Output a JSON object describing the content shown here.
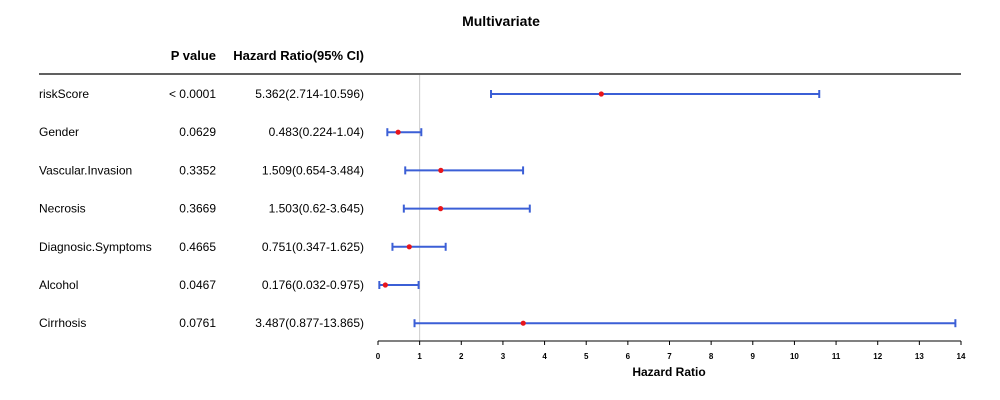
{
  "chart_data": {
    "type": "forest",
    "title": "Multivariate",
    "columns": {
      "pvalue_header": "P value",
      "hr_header": "Hazard Ratio(95% CI)"
    },
    "xlabel": "Hazard Ratio",
    "xlim": [
      0,
      14
    ],
    "reference_line": 1,
    "xticks": [
      "0",
      "1",
      "2",
      "3",
      "4",
      "5",
      "6",
      "7",
      "8",
      "9",
      "10",
      "11",
      "12",
      "13",
      "14"
    ],
    "rows": [
      {
        "variable": "riskScore",
        "pvalue": "< 0.0001",
        "hr_text": "5.362(2.714-10.596)",
        "hr": 5.362,
        "lower": 2.714,
        "upper": 10.596
      },
      {
        "variable": "Gender",
        "pvalue": "0.0629",
        "hr_text": "0.483(0.224-1.04)",
        "hr": 0.483,
        "lower": 0.224,
        "upper": 1.04
      },
      {
        "variable": "Vascular.Invasion",
        "pvalue": "0.3352",
        "hr_text": "1.509(0.654-3.484)",
        "hr": 1.509,
        "lower": 0.654,
        "upper": 3.484
      },
      {
        "variable": "Necrosis",
        "pvalue": "0.3669",
        "hr_text": "1.503(0.62-3.645)",
        "hr": 1.503,
        "lower": 0.62,
        "upper": 3.645
      },
      {
        "variable": "Diagnosic.Symptoms",
        "pvalue": "0.4665",
        "hr_text": "0.751(0.347-1.625)",
        "hr": 0.751,
        "lower": 0.347,
        "upper": 1.625
      },
      {
        "variable": "Alcohol",
        "pvalue": "0.0467",
        "hr_text": "0.176(0.032-0.975)",
        "hr": 0.176,
        "lower": 0.032,
        "upper": 0.975
      },
      {
        "variable": "Cirrhosis",
        "pvalue": "0.0761",
        "hr_text": "3.487(0.877-13.865)",
        "hr": 3.487,
        "lower": 0.877,
        "upper": 13.865
      }
    ],
    "colors": {
      "ci_line": "#3b5fd6",
      "point": "#e8151b",
      "ref_line": "#cccccc"
    }
  }
}
